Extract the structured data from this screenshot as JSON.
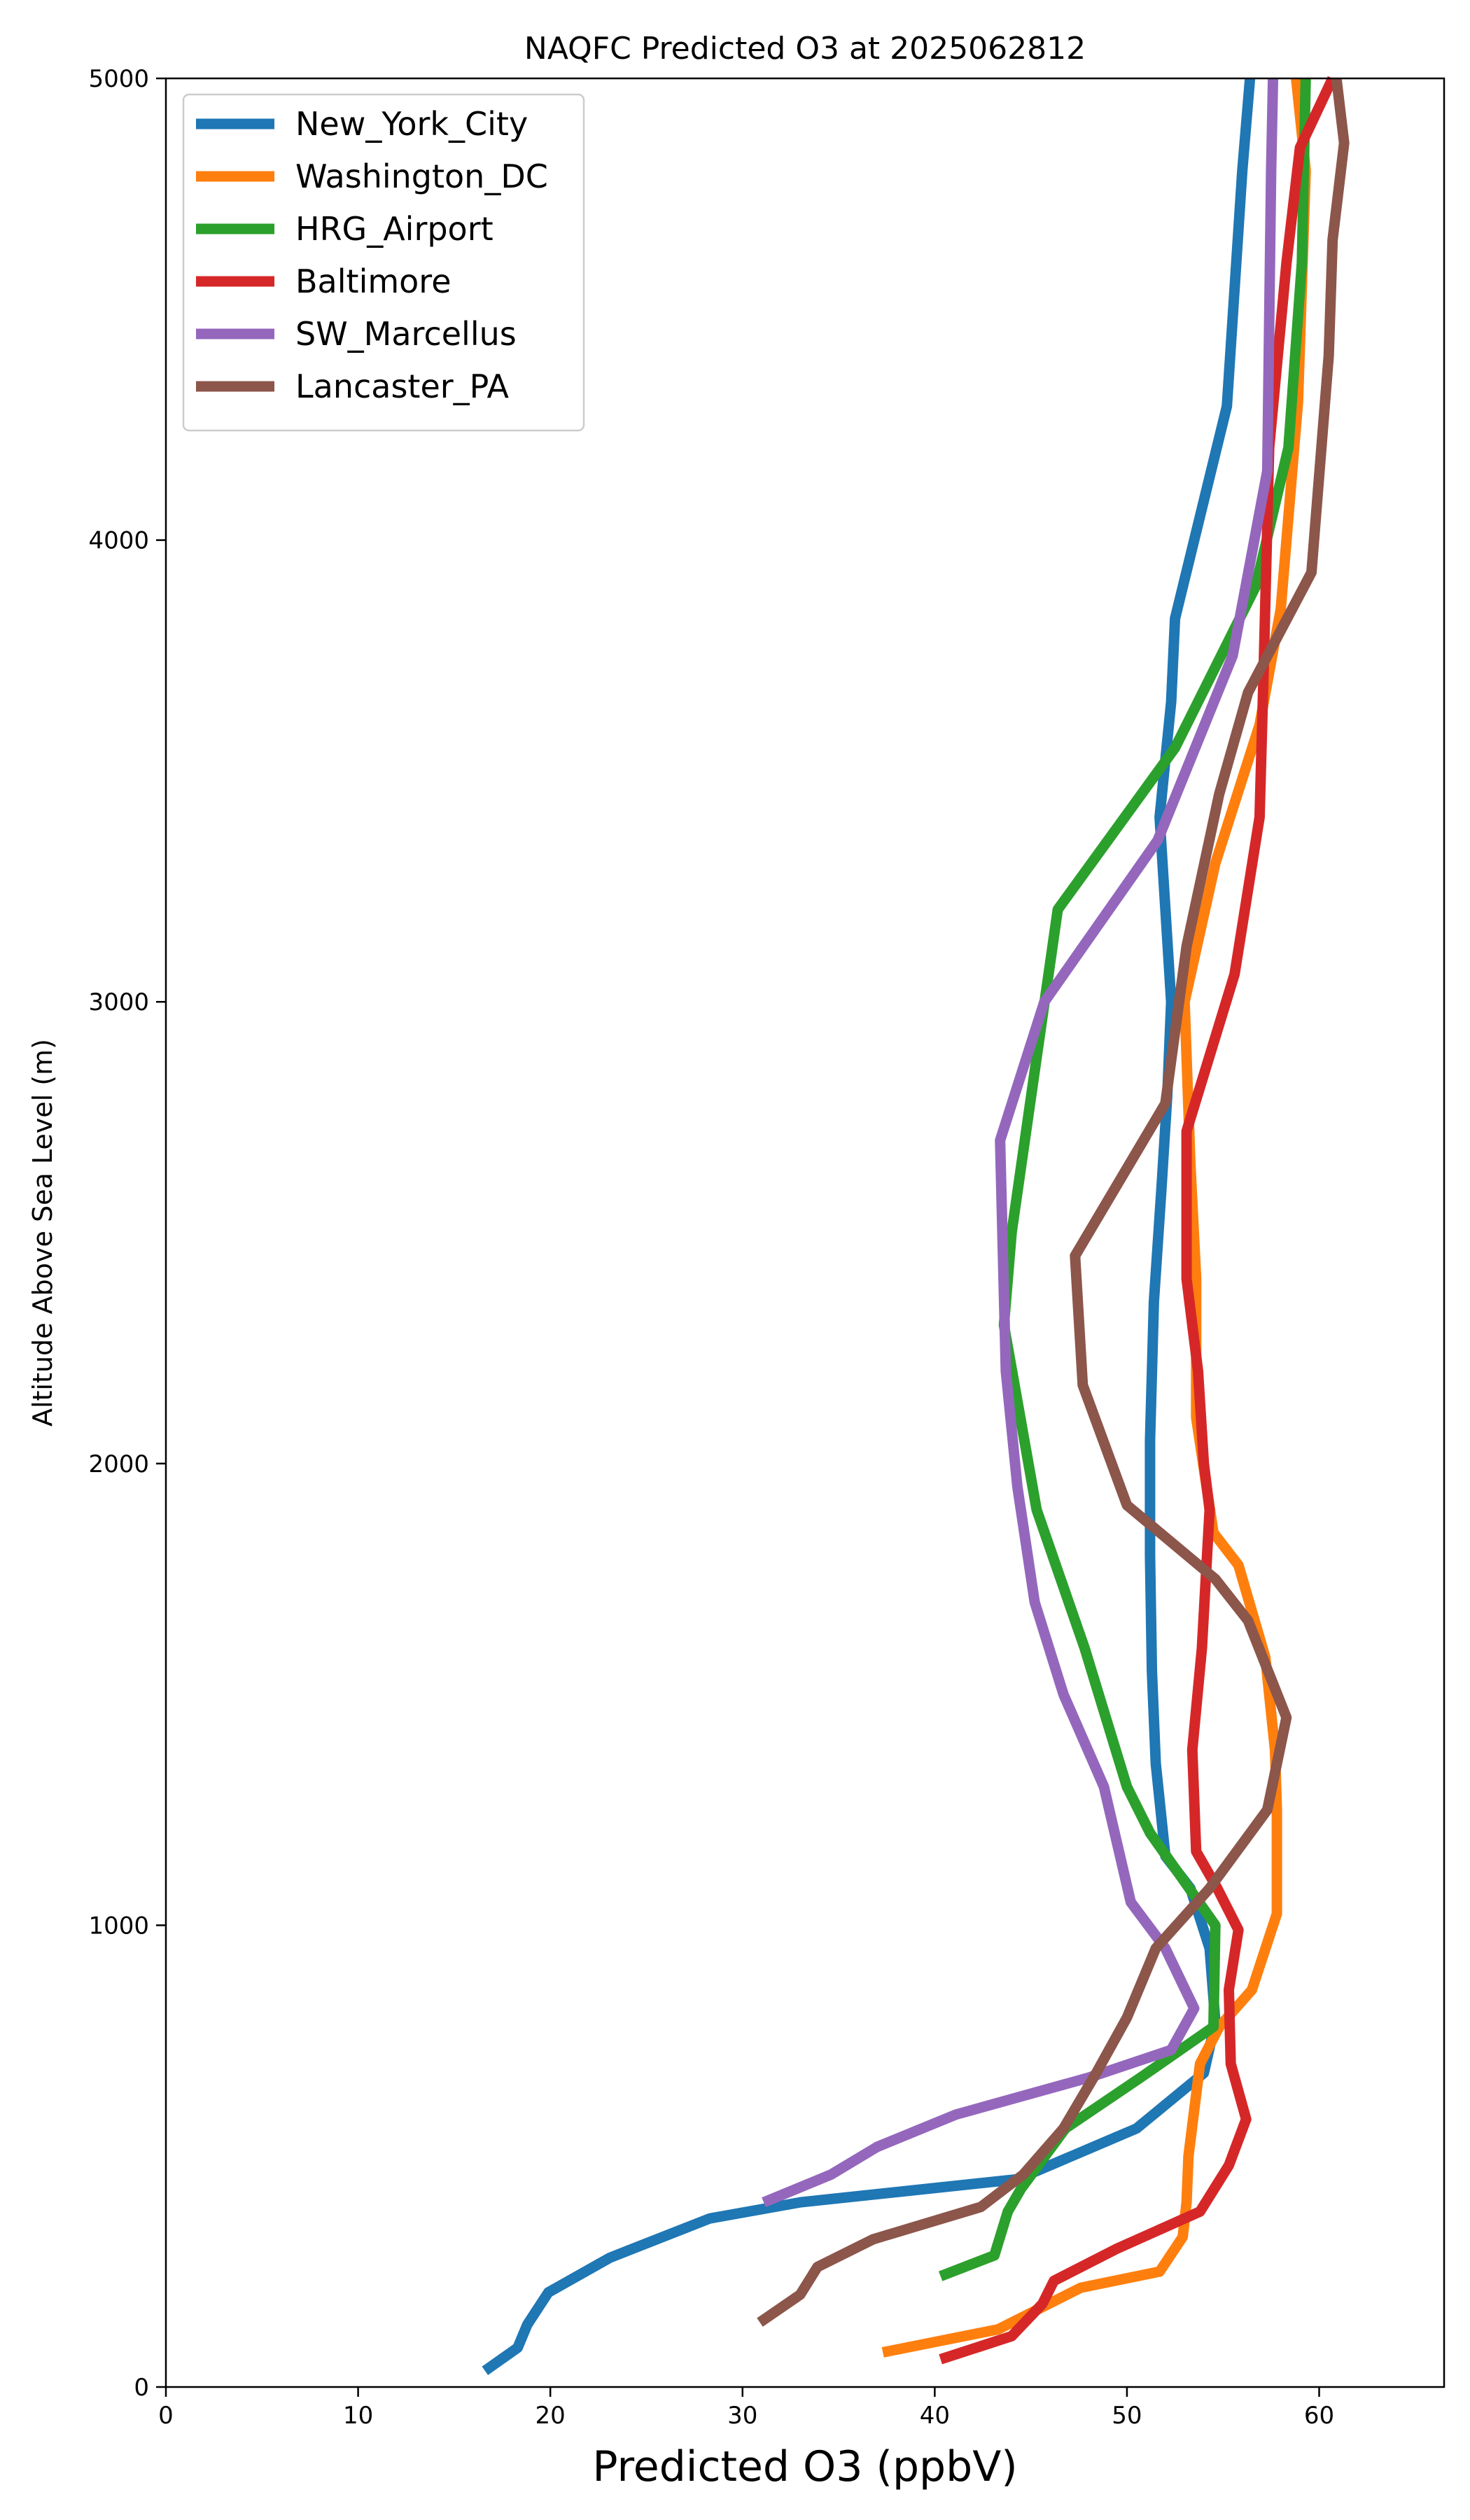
{
  "chart_data": {
    "type": "line",
    "title": "NAQFC Predicted O3 at 2025062812",
    "xlabel": "Predicted O3 (ppbV)",
    "ylabel": "Altitude Above Sea Level (m)",
    "xlim": [
      0,
      66.5
    ],
    "ylim": [
      0,
      5000
    ],
    "xticks": [
      0,
      10,
      20,
      30,
      40,
      50,
      60
    ],
    "yticks": [
      0,
      1000,
      2000,
      3000,
      4000,
      5000
    ],
    "grid": false,
    "legend_position": "upper-left",
    "series": [
      {
        "name": "New_York_City",
        "color": "#1f77b4",
        "points": [
          [
            16.6,
            35
          ],
          [
            18.3,
            85
          ],
          [
            18.8,
            135
          ],
          [
            19.9,
            205
          ],
          [
            23.1,
            280
          ],
          [
            28.3,
            365
          ],
          [
            33.0,
            400
          ],
          [
            44.3,
            450
          ],
          [
            50.5,
            560
          ],
          [
            54.0,
            680
          ],
          [
            54.6,
            790
          ],
          [
            54.3,
            950
          ],
          [
            53.3,
            1080
          ],
          [
            52.0,
            1150
          ],
          [
            51.5,
            1350
          ],
          [
            51.3,
            1550
          ],
          [
            51.2,
            1800
          ],
          [
            51.2,
            2050
          ],
          [
            51.4,
            2350
          ],
          [
            51.8,
            2600
          ],
          [
            52.1,
            2800
          ],
          [
            52.3,
            3000
          ],
          [
            51.7,
            3400
          ],
          [
            52.3,
            3650
          ],
          [
            52.5,
            3830
          ],
          [
            55.2,
            4290
          ],
          [
            56.0,
            4800
          ],
          [
            56.4,
            5000
          ]
        ]
      },
      {
        "name": "Washington_DC",
        "color": "#ff7f0e",
        "points": [
          [
            37.3,
            75
          ],
          [
            43.3,
            125
          ],
          [
            47.6,
            215
          ],
          [
            51.7,
            250
          ],
          [
            52.9,
            325
          ],
          [
            53.1,
            400
          ],
          [
            53.2,
            500
          ],
          [
            53.8,
            700
          ],
          [
            54.8,
            780
          ],
          [
            56.5,
            860
          ],
          [
            57.8,
            1025
          ],
          [
            57.8,
            1250
          ],
          [
            57.7,
            1380
          ],
          [
            57.2,
            1580
          ],
          [
            55.8,
            1780
          ],
          [
            54.5,
            1850
          ],
          [
            53.6,
            2100
          ],
          [
            53.6,
            2400
          ],
          [
            53.3,
            2650
          ],
          [
            53.0,
            3000
          ],
          [
            54.6,
            3300
          ],
          [
            56.9,
            3600
          ],
          [
            58.0,
            3850
          ],
          [
            58.9,
            4300
          ],
          [
            59.3,
            4800
          ],
          [
            58.8,
            5000
          ]
        ]
      },
      {
        "name": "HRG_Airport",
        "color": "#2ca02c",
        "points": [
          [
            40.3,
            240
          ],
          [
            43.1,
            285
          ],
          [
            43.8,
            380
          ],
          [
            44.5,
            430
          ],
          [
            46.8,
            560
          ],
          [
            50.7,
            670
          ],
          [
            54.5,
            780
          ],
          [
            54.6,
            1000
          ],
          [
            51.2,
            1200
          ],
          [
            50.0,
            1300
          ],
          [
            47.8,
            1600
          ],
          [
            45.3,
            1900
          ],
          [
            43.6,
            2300
          ],
          [
            44.0,
            2500
          ],
          [
            46.4,
            3200
          ],
          [
            52.5,
            3550
          ],
          [
            56.7,
            3900
          ],
          [
            58.4,
            4200
          ],
          [
            59.1,
            4600
          ],
          [
            59.3,
            5000
          ]
        ]
      },
      {
        "name": "Baltimore",
        "color": "#d62728",
        "points": [
          [
            40.3,
            60
          ],
          [
            44.0,
            110
          ],
          [
            45.6,
            180
          ],
          [
            46.2,
            230
          ],
          [
            49.5,
            300
          ],
          [
            53.8,
            380
          ],
          [
            55.3,
            480
          ],
          [
            56.2,
            580
          ],
          [
            55.4,
            700
          ],
          [
            55.3,
            860
          ],
          [
            55.8,
            990
          ],
          [
            54.7,
            1080
          ],
          [
            53.6,
            1160
          ],
          [
            53.4,
            1380
          ],
          [
            53.9,
            1600
          ],
          [
            54.3,
            1900
          ],
          [
            54.0,
            2000
          ],
          [
            53.7,
            2200
          ],
          [
            53.1,
            2400
          ],
          [
            53.1,
            2720
          ],
          [
            55.6,
            3060
          ],
          [
            56.9,
            3400
          ],
          [
            57.1,
            3700
          ],
          [
            57.4,
            4200
          ],
          [
            58.3,
            4600
          ],
          [
            59.0,
            4850
          ],
          [
            60.7,
            5000
          ]
        ]
      },
      {
        "name": "SW_Marcellus",
        "color": "#9467bd",
        "points": [
          [
            31.1,
            400
          ],
          [
            34.6,
            460
          ],
          [
            37.0,
            520
          ],
          [
            41.1,
            590
          ],
          [
            48.0,
            670
          ],
          [
            52.3,
            730
          ],
          [
            53.5,
            820
          ],
          [
            52.0,
            950
          ],
          [
            50.2,
            1050
          ],
          [
            48.8,
            1300
          ],
          [
            46.7,
            1500
          ],
          [
            45.2,
            1700
          ],
          [
            44.3,
            1950
          ],
          [
            43.7,
            2200
          ],
          [
            43.4,
            2700
          ],
          [
            45.7,
            3000
          ],
          [
            51.6,
            3350
          ],
          [
            55.5,
            3750
          ],
          [
            57.3,
            4150
          ],
          [
            57.5,
            4800
          ],
          [
            57.6,
            5000
          ]
        ]
      },
      {
        "name": "Lancaster_PA",
        "color": "#8c564b",
        "points": [
          [
            30.9,
            140
          ],
          [
            33.0,
            200
          ],
          [
            33.9,
            260
          ],
          [
            36.8,
            320
          ],
          [
            42.4,
            390
          ],
          [
            44.6,
            460
          ],
          [
            46.7,
            560
          ],
          [
            48.4,
            680
          ],
          [
            50.0,
            800
          ],
          [
            51.5,
            950
          ],
          [
            54.3,
            1080
          ],
          [
            57.3,
            1250
          ],
          [
            58.3,
            1450
          ],
          [
            56.3,
            1660
          ],
          [
            54.6,
            1750
          ],
          [
            50.0,
            1910
          ],
          [
            47.7,
            2170
          ],
          [
            47.3,
            2450
          ],
          [
            52.0,
            2780
          ],
          [
            53.1,
            3120
          ],
          [
            54.8,
            3450
          ],
          [
            56.3,
            3670
          ],
          [
            59.6,
            3930
          ],
          [
            60.5,
            4400
          ],
          [
            60.7,
            4650
          ],
          [
            61.3,
            4860
          ],
          [
            60.9,
            5000
          ]
        ]
      }
    ]
  }
}
